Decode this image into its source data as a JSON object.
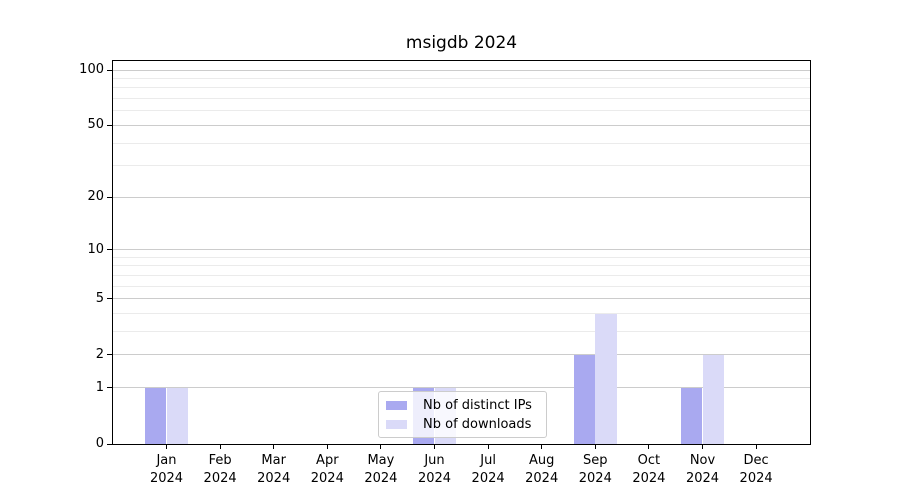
{
  "title": "msigdb 2024",
  "colors": {
    "bar_distinct_ips": "#a9a9f0",
    "bar_downloads": "#dadaf8",
    "grid_major": "#cccccc",
    "grid_minor": "#ebebeb",
    "axis": "#000000",
    "legend_border": "#cccccc"
  },
  "legend": {
    "items": [
      {
        "label": "Nb of distinct IPs",
        "color_key": "bar_distinct_ips"
      },
      {
        "label": "Nb of downloads",
        "color_key": "bar_downloads"
      }
    ]
  },
  "chart_data": {
    "type": "bar",
    "title": "msigdb 2024",
    "xlabel": "",
    "ylabel": "",
    "scale": "log1p",
    "categories": [
      "Jan 2024",
      "Feb 2024",
      "Mar 2024",
      "Apr 2024",
      "May 2024",
      "Jun 2024",
      "Jul 2024",
      "Aug 2024",
      "Sep 2024",
      "Oct 2024",
      "Nov 2024",
      "Dec 2024"
    ],
    "series": [
      {
        "name": "Nb of distinct IPs",
        "color_key": "bar_distinct_ips",
        "values": [
          1,
          0,
          0,
          0,
          0,
          1,
          0,
          0,
          2,
          0,
          1,
          0
        ]
      },
      {
        "name": "Nb of downloads",
        "color_key": "bar_downloads",
        "values": [
          1,
          0,
          0,
          0,
          0,
          1,
          0,
          0,
          4,
          0,
          2,
          0
        ]
      }
    ],
    "yticks": [
      0,
      1,
      2,
      5,
      10,
      20,
      50,
      100
    ],
    "minor_yticks": [
      3,
      4,
      6,
      7,
      8,
      9,
      30,
      40,
      60,
      70,
      80,
      90
    ],
    "ylim": [
      0,
      112
    ],
    "grid": "horizontal",
    "legend_position": "lower-center-inside"
  }
}
